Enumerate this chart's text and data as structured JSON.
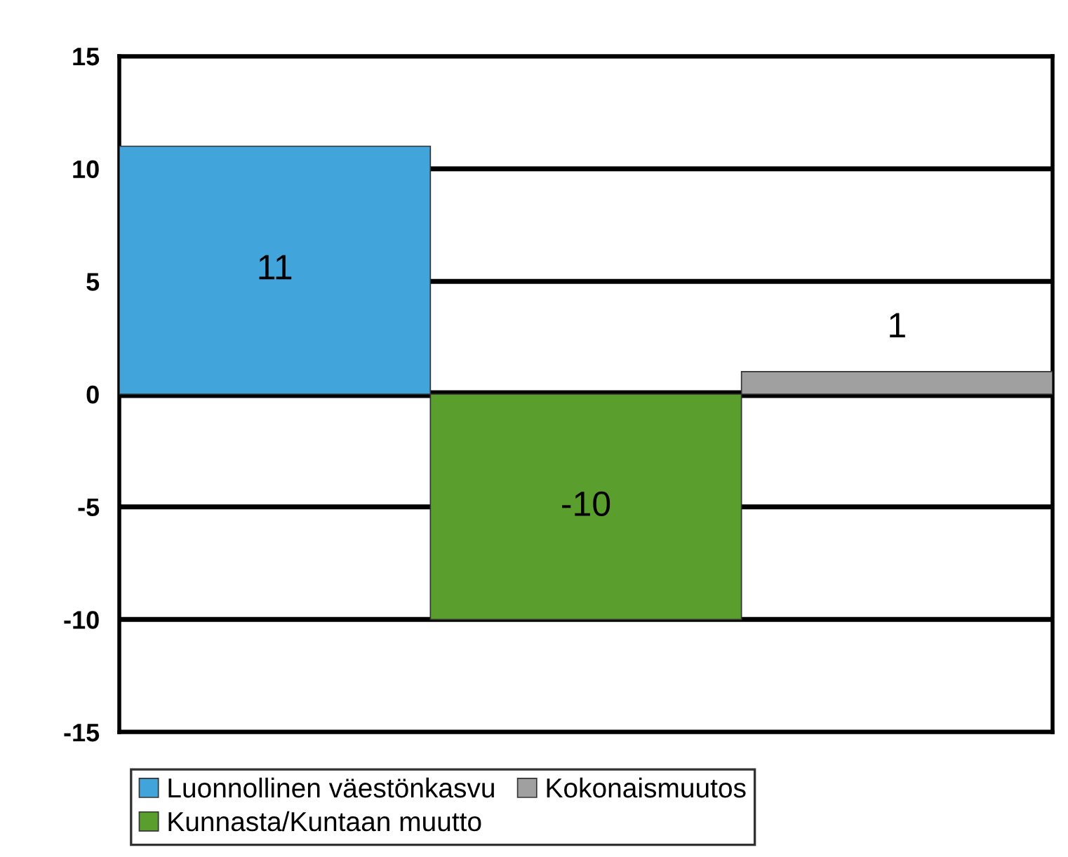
{
  "chart_data": {
    "type": "bar",
    "categories": [
      null,
      null,
      null
    ],
    "series": [
      {
        "name": "Luonnollinen väestönkasvu",
        "color": "#41a5dc",
        "values": [
          11,
          null,
          null
        ]
      },
      {
        "name": "Kunnasta/Kuntaan muutto",
        "color": "#5a9e2d",
        "values": [
          null,
          -10,
          null
        ]
      },
      {
        "name": "Kokonaismuutos",
        "color": "#a0a0a0",
        "values": [
          null,
          null,
          1
        ]
      }
    ],
    "ylim": [
      -15,
      15
    ],
    "yticks": [
      -15,
      -10,
      -5,
      0,
      5,
      10,
      15
    ],
    "grid": "y",
    "legend": "bottom",
    "data_labels": true,
    "tick_labels": "y"
  }
}
